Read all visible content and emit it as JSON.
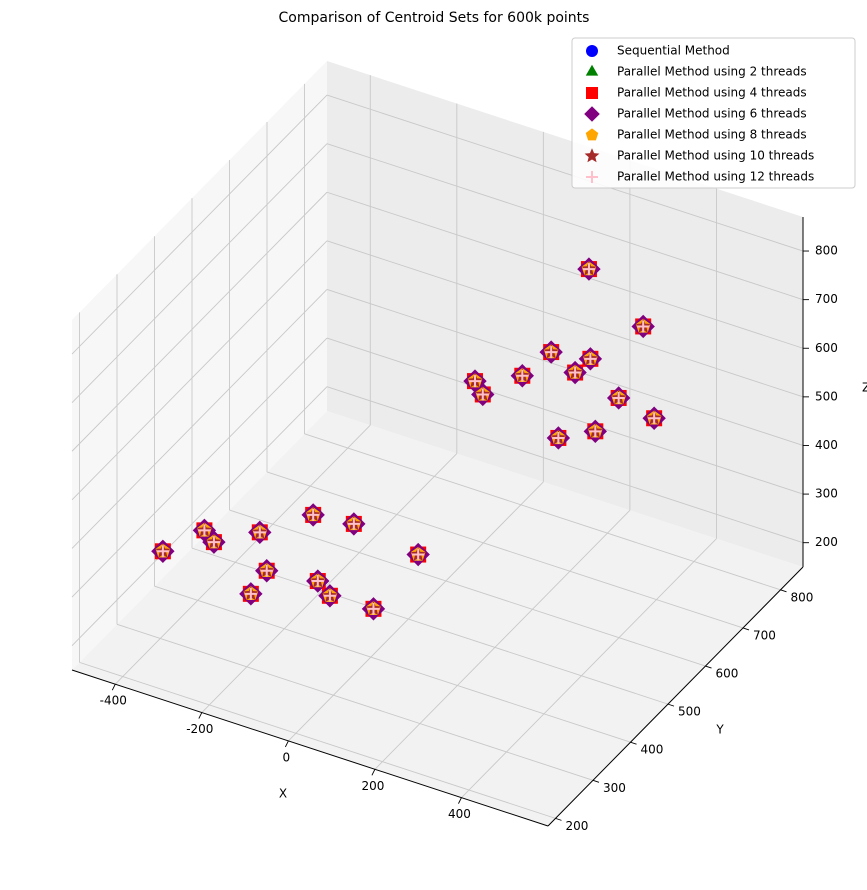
{
  "chart_data": {
    "type": "scatter3d",
    "title": "Comparison of Centroid Sets for 600k points",
    "x_label": "X",
    "y_label": "Y",
    "z_label": "Z",
    "xlim": [
      -500,
      600
    ],
    "ylim": [
      180,
      860
    ],
    "zlim": [
      150,
      870
    ],
    "xticks": [
      -400,
      -200,
      0,
      200,
      400
    ],
    "yticks": [
      200,
      300,
      400,
      500,
      600,
      700,
      800
    ],
    "zticks": [
      200,
      300,
      400,
      500,
      600,
      700,
      800
    ],
    "grid": true,
    "legend": "upper right",
    "series": [
      {
        "name": "Sequential Method",
        "color": "#0000ff",
        "marker": "circle",
        "x": [
          -420,
          -380,
          -350,
          -300,
          -260,
          -220,
          -180,
          -140,
          -100,
          -60,
          -20,
          40,
          50,
          90,
          120,
          160,
          200,
          230,
          260,
          300,
          330,
          360,
          140,
          380
        ],
        "y": [
          330,
          420,
          360,
          450,
          380,
          500,
          330,
          420,
          470,
          360,
          430,
          480,
          620,
          700,
          560,
          760,
          650,
          720,
          600,
          780,
          680,
          740,
          820,
          560
        ],
        "z": [
          300,
          260,
          340,
          280,
          220,
          300,
          330,
          250,
          340,
          290,
          220,
          310,
          560,
          520,
          600,
          500,
          640,
          580,
          520,
          620,
          560,
          480,
          660,
          600
        ]
      },
      {
        "name": "Parallel Method using 2 threads",
        "color": "#008000",
        "marker": "triangle",
        "x": [
          -420,
          -380,
          -350,
          -300,
          -260,
          -220,
          -180,
          -140,
          -100,
          -60,
          -20,
          40,
          50,
          90,
          120,
          160,
          200,
          230,
          260,
          300,
          330,
          360,
          140,
          380
        ],
        "y": [
          330,
          420,
          360,
          450,
          380,
          500,
          330,
          420,
          470,
          360,
          430,
          480,
          620,
          700,
          560,
          760,
          650,
          720,
          600,
          780,
          680,
          740,
          820,
          560
        ],
        "z": [
          300,
          260,
          340,
          280,
          220,
          300,
          330,
          250,
          340,
          290,
          220,
          310,
          560,
          520,
          600,
          500,
          640,
          580,
          520,
          620,
          560,
          480,
          660,
          600
        ]
      },
      {
        "name": "Parallel Method using 4 threads",
        "color": "#ff0000",
        "marker": "square",
        "x": [
          -420,
          -380,
          -350,
          -300,
          -260,
          -220,
          -180,
          -140,
          -100,
          -60,
          -20,
          40,
          50,
          90,
          120,
          160,
          200,
          230,
          260,
          300,
          330,
          360,
          140,
          380
        ],
        "y": [
          330,
          420,
          360,
          450,
          380,
          500,
          330,
          420,
          470,
          360,
          430,
          480,
          620,
          700,
          560,
          760,
          650,
          720,
          600,
          780,
          680,
          740,
          820,
          560
        ],
        "z": [
          300,
          260,
          340,
          280,
          220,
          300,
          330,
          250,
          340,
          290,
          220,
          310,
          560,
          520,
          600,
          500,
          640,
          580,
          520,
          620,
          560,
          480,
          660,
          600
        ]
      },
      {
        "name": "Parallel Method using 6 threads",
        "color": "#800080",
        "marker": "diamond",
        "x": [
          -420,
          -380,
          -350,
          -300,
          -260,
          -220,
          -180,
          -140,
          -100,
          -60,
          -20,
          40,
          50,
          90,
          120,
          160,
          200,
          230,
          260,
          300,
          330,
          360,
          140,
          380
        ],
        "y": [
          330,
          420,
          360,
          450,
          380,
          500,
          330,
          420,
          470,
          360,
          430,
          480,
          620,
          700,
          560,
          760,
          650,
          720,
          600,
          780,
          680,
          740,
          820,
          560
        ],
        "z": [
          300,
          260,
          340,
          280,
          220,
          300,
          330,
          250,
          340,
          290,
          220,
          310,
          560,
          520,
          600,
          500,
          640,
          580,
          520,
          620,
          560,
          480,
          660,
          600
        ]
      },
      {
        "name": "Parallel Method using 8 threads",
        "color": "#ffa500",
        "marker": "pentagon",
        "x": [
          -420,
          -380,
          -350,
          -300,
          -260,
          -220,
          -180,
          -140,
          -100,
          -60,
          -20,
          40,
          50,
          90,
          120,
          160,
          200,
          230,
          260,
          300,
          330,
          360,
          140,
          380
        ],
        "y": [
          330,
          420,
          360,
          450,
          380,
          500,
          330,
          420,
          470,
          360,
          430,
          480,
          620,
          700,
          560,
          760,
          650,
          720,
          600,
          780,
          680,
          740,
          820,
          560
        ],
        "z": [
          300,
          260,
          340,
          280,
          220,
          300,
          330,
          250,
          340,
          290,
          220,
          310,
          560,
          520,
          600,
          500,
          640,
          580,
          520,
          620,
          560,
          480,
          660,
          600
        ]
      },
      {
        "name": "Parallel Method using 10 threads",
        "color": "#a52a2a",
        "marker": "star",
        "x": [
          -420,
          -380,
          -350,
          -300,
          -260,
          -220,
          -180,
          -140,
          -100,
          -60,
          -20,
          40,
          50,
          90,
          120,
          160,
          200,
          230,
          260,
          300,
          330,
          360,
          140,
          380
        ],
        "y": [
          330,
          420,
          360,
          450,
          380,
          500,
          330,
          420,
          470,
          360,
          430,
          480,
          620,
          700,
          560,
          760,
          650,
          720,
          600,
          780,
          680,
          740,
          820,
          560
        ],
        "z": [
          300,
          260,
          340,
          280,
          220,
          300,
          330,
          250,
          340,
          290,
          220,
          310,
          560,
          520,
          600,
          500,
          640,
          580,
          520,
          620,
          560,
          480,
          660,
          600
        ]
      },
      {
        "name": "Parallel Method using 12 threads",
        "color": "#ffc0cb",
        "marker": "plus",
        "x": [
          -420,
          -380,
          -350,
          -300,
          -260,
          -220,
          -180,
          -140,
          -100,
          -60,
          -20,
          40,
          50,
          90,
          120,
          160,
          200,
          230,
          260,
          300,
          330,
          360,
          140,
          380
        ],
        "y": [
          330,
          420,
          360,
          450,
          380,
          500,
          330,
          420,
          470,
          360,
          430,
          480,
          620,
          700,
          560,
          760,
          650,
          720,
          600,
          780,
          680,
          740,
          820,
          560
        ],
        "z": [
          300,
          260,
          340,
          280,
          220,
          300,
          330,
          250,
          340,
          290,
          220,
          310,
          560,
          520,
          600,
          500,
          640,
          580,
          520,
          620,
          560,
          480,
          660,
          600
        ]
      }
    ]
  }
}
